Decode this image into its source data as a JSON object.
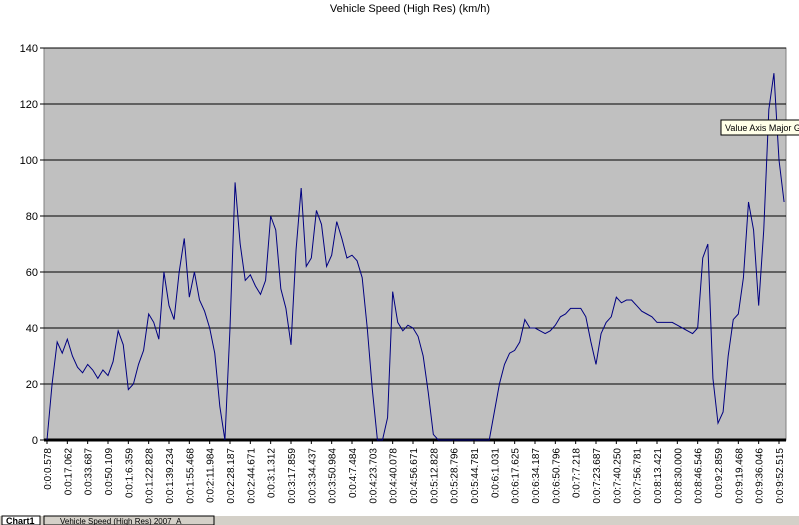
{
  "chart_data": {
    "type": "line",
    "title": "Vehicle Speed (High Res) (km/h)",
    "categories": [
      "0:0:0.578",
      null,
      null,
      null,
      "0:0:17.062",
      null,
      null,
      null,
      "0:0:33.687",
      null,
      null,
      null,
      "0:0:50.109",
      null,
      null,
      null,
      "0:0:1:6.359",
      null,
      null,
      null,
      "0:0:1:22.828",
      null,
      null,
      null,
      "0:0:1:39.234",
      null,
      null,
      null,
      "0:0:1:55.468",
      null,
      null,
      null,
      "0:0:2:11.984",
      null,
      null,
      null,
      "0:0:2:28.187",
      null,
      null,
      null,
      "0:0:2:44.671",
      null,
      null,
      null,
      "0:0:3:1.312",
      null,
      null,
      null,
      "0:0:3:17.859",
      null,
      null,
      null,
      "0:0:3:34.437",
      null,
      null,
      null,
      "0:0:3:50.984",
      null,
      null,
      null,
      "0:0:4:7.484",
      null,
      null,
      null,
      "0:0:4:23.703",
      null,
      null,
      null,
      "0:0:4:40.078",
      null,
      null,
      null,
      "0:0:4:56.671",
      null,
      null,
      null,
      "0:0:5:12.828",
      null,
      null,
      null,
      "0:0:5:28.796",
      null,
      null,
      null,
      "0:0:5:44.781",
      null,
      null,
      null,
      "0:0:6:1.031",
      null,
      null,
      null,
      "0:0:6:17.625",
      null,
      null,
      null,
      "0:0:6:34.187",
      null,
      null,
      null,
      "0:0:6:50.796",
      null,
      null,
      null,
      "0:0:7:7.218",
      null,
      null,
      null,
      "0:0:7:23.687",
      null,
      null,
      null,
      "0:0:7:40.250",
      null,
      null,
      null,
      "0:0:7:56.781",
      null,
      null,
      null,
      "0:0:8:13.421",
      null,
      null,
      null,
      "0:0:8:30.000",
      null,
      null,
      null,
      "0:0:8:46.546",
      null,
      null,
      null,
      "0:0:9:2.859",
      null,
      null,
      null,
      "0:0:9:19.468",
      null,
      null,
      null,
      "0:0:9:36.046",
      null,
      null,
      null,
      "0:0:9:52.515",
      null
    ],
    "values": [
      0,
      20,
      35,
      31,
      36,
      30,
      26,
      24,
      27,
      25,
      22,
      25,
      23,
      28,
      39,
      34,
      18,
      20,
      27,
      32,
      45,
      42,
      36,
      60,
      48,
      43,
      60,
      72,
      51,
      60,
      50,
      46,
      40,
      31,
      12,
      0,
      40,
      92,
      70,
      57,
      59,
      55,
      52,
      57,
      80,
      75,
      54,
      47,
      34,
      68,
      90,
      62,
      65,
      82,
      77,
      62,
      66,
      78,
      72,
      65,
      66,
      64,
      58,
      40,
      18,
      0,
      0,
      8,
      53,
      42,
      39,
      41,
      40,
      37,
      30,
      17,
      2,
      0,
      0,
      0,
      0,
      0,
      0,
      0,
      0,
      0,
      0,
      0,
      10,
      20,
      27,
      31,
      32,
      35,
      43,
      40,
      40,
      39,
      38,
      39,
      41,
      44,
      45,
      47,
      47,
      47,
      44,
      35,
      27,
      38,
      42,
      44,
      51,
      49,
      50,
      50,
      48,
      46,
      45,
      44,
      42,
      42,
      42,
      42,
      41,
      40,
      39,
      38,
      40,
      65,
      70,
      22,
      6,
      10,
      30,
      43,
      45,
      58,
      85,
      75,
      48,
      75,
      118,
      131,
      100,
      85
    ],
    "color": "#000080",
    "ylim": [
      0,
      140
    ],
    "yticks": [
      0,
      20,
      40,
      60,
      80,
      100,
      120,
      140
    ],
    "grid": true
  },
  "ui": {
    "tooltip": "Value Axis Major G",
    "tabs": [
      "Chart1",
      "Vehicle Speed (High Res) 2007_A"
    ]
  }
}
